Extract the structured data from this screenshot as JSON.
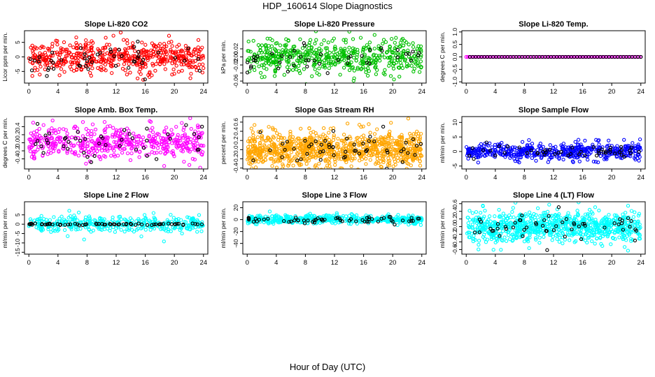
{
  "title": "HDP_160614  Slope Diagnostics",
  "xlabel": "Hour of Day (UTC)",
  "chart_data": [
    {
      "type": "scatter",
      "title": "Slope Li-820 CO2",
      "ylabel": "Licor ppm per min.",
      "color": "#ff0000",
      "ylim": [
        -9,
        9
      ],
      "yticks": [
        -5,
        0,
        5
      ],
      "yticklabels": [
        "-5",
        "0",
        "5"
      ],
      "xlim": [
        -0.6,
        24.6
      ],
      "xticks": [
        0,
        4,
        8,
        12,
        16,
        20,
        24
      ],
      "xticklabels": [
        "0",
        "4",
        "8",
        "12",
        "16",
        "20",
        "24"
      ],
      "series": [
        {
          "name": "main",
          "color": "#ff0000",
          "n": 540,
          "x_range": [
            0,
            24
          ],
          "spread": 2.6,
          "seed": 11
        },
        {
          "name": "black",
          "color": "#000000",
          "n": 48,
          "x_range": [
            0,
            24
          ],
          "spread": 2.4,
          "seed": 12
        }
      ]
    },
    {
      "type": "scatter",
      "title": "Slope Li-820 Pressure",
      "ylabel": "kPa per min.",
      "color": "#00c000",
      "ylim": [
        -0.065,
        0.065
      ],
      "yticks": [
        -0.06,
        -0.02,
        0.02
      ],
      "yticklabels": [
        "-0.06",
        "-0.02",
        "0.02"
      ],
      "ymid_ticks": [
        -0.04,
        0.0
      ],
      "ymid_labels": [
        "",
        "0.00"
      ],
      "xlim": [
        -0.6,
        24.6
      ],
      "xticks": [
        0,
        4,
        8,
        12,
        16,
        20,
        24
      ],
      "xticklabels": [
        "0",
        "4",
        "8",
        "12",
        "16",
        "20",
        "24"
      ],
      "series": [
        {
          "name": "main",
          "color": "#00c000",
          "n": 520,
          "x_range": [
            0,
            24
          ],
          "spread": 0.022,
          "seed": 21
        },
        {
          "name": "black",
          "color": "#000000",
          "n": 46,
          "x_range": [
            0,
            24
          ],
          "spread": 0.018,
          "seed": 22
        }
      ]
    },
    {
      "type": "scatter",
      "title": "Slope Li-820 Temp.",
      "ylabel": "degrees C per min.",
      "color": "#ff00ff",
      "ylim": [
        -1.05,
        1.05
      ],
      "yticks": [
        -1.0,
        -0.5,
        0.0,
        0.5,
        1.0
      ],
      "yticklabels": [
        "-1.0",
        "-0.5",
        "0.0",
        "0.5",
        "1.0"
      ],
      "xlim": [
        -0.6,
        24.6
      ],
      "xticks": [
        0,
        4,
        8,
        12,
        16,
        20,
        24
      ],
      "xticklabels": [
        "0",
        "4",
        "8",
        "12",
        "16",
        "20",
        "24"
      ],
      "series": [
        {
          "name": "main",
          "color": "#ff00ff",
          "n": 120,
          "x_range": [
            0,
            24
          ],
          "spread": 0.0,
          "seed": 31
        },
        {
          "name": "black",
          "color": "#000000",
          "n": 60,
          "x_range": [
            0.5,
            24
          ],
          "spread": 0.0,
          "seed": 32
        }
      ]
    },
    {
      "type": "scatter",
      "title": "Slope Amb. Box Temp.",
      "ylabel": "degrees C per min.",
      "color": "#ff00ff",
      "ylim": [
        -0.65,
        0.65
      ],
      "yticks": [
        -0.4,
        -0.2,
        0.0,
        0.2,
        0.4
      ],
      "yticklabels": [
        "-0.4",
        "-0.2",
        "0.0",
        "0.2",
        "0.4"
      ],
      "xlim": [
        -0.6,
        24.6
      ],
      "xticks": [
        0,
        4,
        8,
        12,
        16,
        20,
        24
      ],
      "xticklabels": [
        "0",
        "4",
        "8",
        "12",
        "16",
        "20",
        "24"
      ],
      "series": [
        {
          "name": "main",
          "color": "#ff00ff",
          "n": 520,
          "x_range": [
            0,
            24
          ],
          "spread": 0.2,
          "seed": 41
        },
        {
          "name": "black",
          "color": "#000000",
          "n": 46,
          "x_range": [
            0,
            24
          ],
          "spread": 0.22,
          "seed": 42
        }
      ]
    },
    {
      "type": "scatter",
      "title": "Slope Gas Stream RH",
      "ylabel": "percent per min.",
      "color": "#ffa500",
      "ylim": [
        -0.42,
        0.72
      ],
      "yticks": [
        -0.4,
        -0.2,
        0.0,
        0.2,
        0.4,
        0.6
      ],
      "yticklabels": [
        "-0.4",
        "-0.2",
        "0.0",
        "0.2",
        "0.4",
        "0.6"
      ],
      "xlim": [
        -0.6,
        24.6
      ],
      "xticks": [
        0,
        4,
        8,
        12,
        16,
        20,
        24
      ],
      "xticklabels": [
        "0",
        "4",
        "8",
        "12",
        "16",
        "20",
        "24"
      ],
      "series": [
        {
          "name": "main",
          "color": "#ffa500",
          "n": 900,
          "x_range": [
            0,
            24
          ],
          "spread": 0.2,
          "seed": 51
        },
        {
          "name": "black",
          "color": "#000000",
          "n": 55,
          "x_range": [
            0,
            24
          ],
          "spread": 0.18,
          "seed": 52
        }
      ]
    },
    {
      "type": "scatter",
      "title": "Slope Sample Flow",
      "ylabel": "ml/min per min.",
      "color": "#0000ff",
      "ylim": [
        -6,
        12
      ],
      "yticks": [
        -5,
        0,
        5,
        10
      ],
      "yticklabels": [
        "-5",
        "0",
        "5",
        "10"
      ],
      "xlim": [
        -0.6,
        24.6
      ],
      "xticks": [
        0,
        4,
        8,
        12,
        16,
        20,
        24
      ],
      "xticklabels": [
        "0",
        "4",
        "8",
        "12",
        "16",
        "20",
        "24"
      ],
      "series": [
        {
          "name": "main",
          "color": "#0000ff",
          "n": 520,
          "x_range": [
            0,
            24
          ],
          "spread": 1.4,
          "seed": 61
        },
        {
          "name": "black",
          "color": "#000000",
          "n": 50,
          "x_range": [
            0,
            24
          ],
          "spread": 1.2,
          "seed": 62
        }
      ]
    },
    {
      "type": "scatter",
      "title": "Slope Line 2 Flow",
      "ylabel": "ml/min per min.",
      "color": "#00ffff",
      "ylim": [
        -16,
        12
      ],
      "yticks": [
        -15,
        -10,
        -5,
        0,
        5
      ],
      "yticklabels": [
        "-15",
        "-10",
        "-5",
        "0",
        "5"
      ],
      "xlim": [
        -0.6,
        24.6
      ],
      "xticks": [
        0,
        4,
        8,
        12,
        16,
        20,
        24
      ],
      "xticklabels": [
        "0",
        "4",
        "8",
        "12",
        "16",
        "20",
        "24"
      ],
      "series": [
        {
          "name": "main",
          "color": "#00ffff",
          "n": 380,
          "x_range": [
            0,
            24
          ],
          "spread": 2.2,
          "seed": 71
        },
        {
          "name": "black",
          "color": "#000000",
          "n": 70,
          "x_range": [
            0,
            24
          ],
          "spread": 0.25,
          "seed": 72
        }
      ]
    },
    {
      "type": "scatter",
      "title": "Slope Line 3 Flow",
      "ylabel": "ml/min per min.",
      "color": "#00ffff",
      "ylim": [
        -58,
        30
      ],
      "yticks": [
        -40,
        -20,
        0,
        20
      ],
      "yticklabels": [
        "-40",
        "-20",
        "0",
        "20"
      ],
      "xlim": [
        -0.6,
        24.6
      ],
      "xticks": [
        0,
        4,
        8,
        12,
        16,
        20,
        24
      ],
      "xticklabels": [
        "0",
        "4",
        "8",
        "12",
        "16",
        "20",
        "24"
      ],
      "series": [
        {
          "name": "main",
          "color": "#00ffff",
          "n": 520,
          "x_range": [
            0,
            24
          ],
          "spread": 3.5,
          "seed": 81
        },
        {
          "name": "black",
          "color": "#000000",
          "n": 60,
          "x_range": [
            0,
            24
          ],
          "spread": 3.0,
          "seed": 82
        }
      ]
    },
    {
      "type": "scatter",
      "title": "Slope Line 4 (LT) Flow",
      "ylabel": "ml/min per min.",
      "color": "#00ffff",
      "ylim": [
        -0.72,
        0.65
      ],
      "yticks": [
        -0.6,
        -0.4,
        -0.2,
        0.0,
        0.2,
        0.4,
        0.6
      ],
      "yticklabels": [
        "-0.6",
        "-0.4",
        "-0.2",
        "0.0",
        "0.2",
        "0.4",
        "0.6"
      ],
      "xlim": [
        -0.6,
        24.6
      ],
      "xticks": [
        0,
        4,
        8,
        12,
        16,
        20,
        24
      ],
      "xticklabels": [
        "0",
        "4",
        "8",
        "12",
        "16",
        "20",
        "24"
      ],
      "series": [
        {
          "name": "main",
          "color": "#00ffff",
          "n": 820,
          "x_range": [
            0,
            24
          ],
          "spread": 0.2,
          "seed": 91
        },
        {
          "name": "black",
          "color": "#000000",
          "n": 55,
          "x_range": [
            0,
            24
          ],
          "spread": 0.2,
          "seed": 92
        }
      ]
    }
  ]
}
